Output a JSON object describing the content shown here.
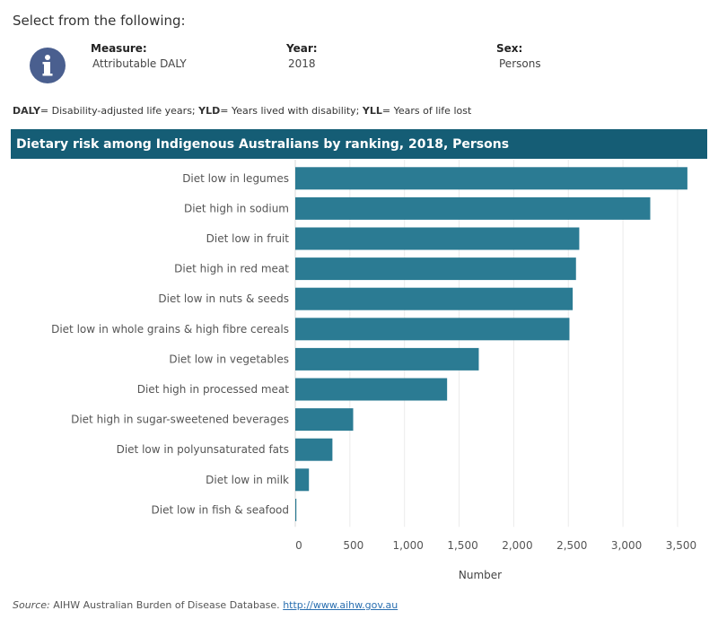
{
  "selector": {
    "title": "Select from the following:",
    "measure": {
      "label": "Measure:",
      "value": "Attributable DALY"
    },
    "year": {
      "label": "Year:",
      "value": "2018"
    },
    "sex": {
      "label": "Sex:",
      "value": "Persons"
    }
  },
  "abbreviations": [
    {
      "abbr": "DALY",
      "text": "= Disability-adjusted life years; "
    },
    {
      "abbr": "YLD",
      "text": "= Years lived with disability; "
    },
    {
      "abbr": "YLL",
      "text": "= Years of life lost"
    }
  ],
  "icons": {
    "info": "info-icon"
  },
  "colors": {
    "banner": "#155d75",
    "bar": "#2b7b93",
    "icon": "#4a5f8f",
    "grid": "#ebebeb"
  },
  "chart_data": {
    "type": "bar",
    "orientation": "horizontal",
    "title": "Dietary risk among Indigenous Australians by ranking, 2018, Persons",
    "xlabel": "Number",
    "ylabel": "",
    "xlim": [
      0,
      3600
    ],
    "xticks": [
      "0",
      "500",
      "1,000",
      "1,500",
      "2,000",
      "2,500",
      "3,000",
      "3,500"
    ],
    "grid": true,
    "categories": [
      "Diet low in legumes",
      "Diet high in sodium",
      "Diet low in fruit",
      "Diet high in red meat",
      "Diet low in nuts & seeds",
      "Diet low in whole grains & high fibre cereals",
      "Diet low in vegetables",
      "Diet high in processed meat",
      "Diet high in sugar-sweetened beverages",
      "Diet low in polyunsaturated fats",
      "Diet low in milk",
      "Diet low in fish & seafood"
    ],
    "values": [
      3590,
      3250,
      2600,
      2570,
      2540,
      2510,
      1680,
      1390,
      530,
      340,
      125,
      10
    ]
  },
  "source": {
    "prefix": "Source:",
    "text": " AIHW Australian Burden of Disease Database. ",
    "link": "http://www.aihw.gov.au"
  }
}
